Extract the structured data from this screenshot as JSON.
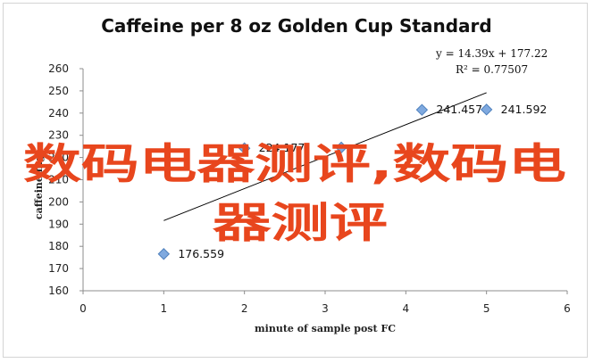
{
  "chart_data": {
    "type": "scatter",
    "title": "Caffeine per 8 oz Golden Cup Standard",
    "xlabel": "minute of sample post FC",
    "ylabel": "caffeine mg",
    "xlim": [
      0,
      6
    ],
    "ylim": [
      160,
      260
    ],
    "x_ticks": [
      "0",
      "1",
      "2",
      "3",
      "4",
      "5",
      "6"
    ],
    "y_ticks": [
      "160",
      "170",
      "180",
      "190",
      "200",
      "210",
      "220",
      "230",
      "240",
      "250",
      "260"
    ],
    "points": [
      {
        "x": 1,
        "y": 176.559,
        "label": "176.559"
      },
      {
        "x": 2,
        "y": 224.177,
        "label": "224.177"
      },
      {
        "x": 3.2,
        "y": 224.5,
        "label": ""
      },
      {
        "x": 4.2,
        "y": 241.457,
        "label": "241.457"
      },
      {
        "x": 5,
        "y": 241.592,
        "label": "241.592"
      }
    ],
    "trendline": {
      "type": "linear",
      "slope": 14.39,
      "intercept": 177.22,
      "x_range": [
        1,
        5
      ],
      "equation": "y = 14.39x + 177.22",
      "r2": "R² = 0.77507"
    },
    "grid": false,
    "legend": "none",
    "marker_color": "#7fa9df",
    "marker_edge": "#4f81bd"
  },
  "watermark": {
    "line1": "数码电器测评,数码电",
    "line2": "器测评",
    "color": "#e8461d"
  }
}
